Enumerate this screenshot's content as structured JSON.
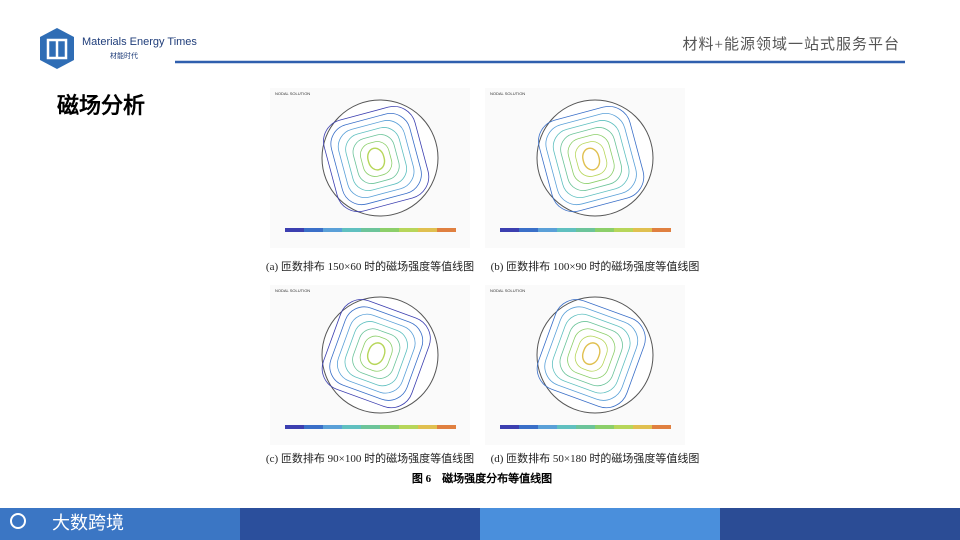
{
  "header": {
    "brand": "Materials Energy Times",
    "brand_cn": "材能时代",
    "slogan": "材料+能源领域一站式服务平台"
  },
  "title": "磁场分析",
  "figure": {
    "panels": [
      {
        "label": "NODAL SOLUTION",
        "caption": "(a) 匝数排布 150×60 时的磁场强度等值线图"
      },
      {
        "label": "NODAL SOLUTION",
        "caption": "(b) 匝数排布 100×90 时的磁场强度等值线图"
      },
      {
        "label": "NODAL SOLUTION",
        "caption": "(c) 匝数排布 90×100 时的磁场强度等值线图"
      },
      {
        "label": "NODAL SOLUTION",
        "caption": "(d) 匝数排布 50×180 时的磁场强度等值线图"
      }
    ],
    "caption": "图 6　磁场强度分布等值线图"
  },
  "footer": {
    "brand": "大数跨境"
  }
}
